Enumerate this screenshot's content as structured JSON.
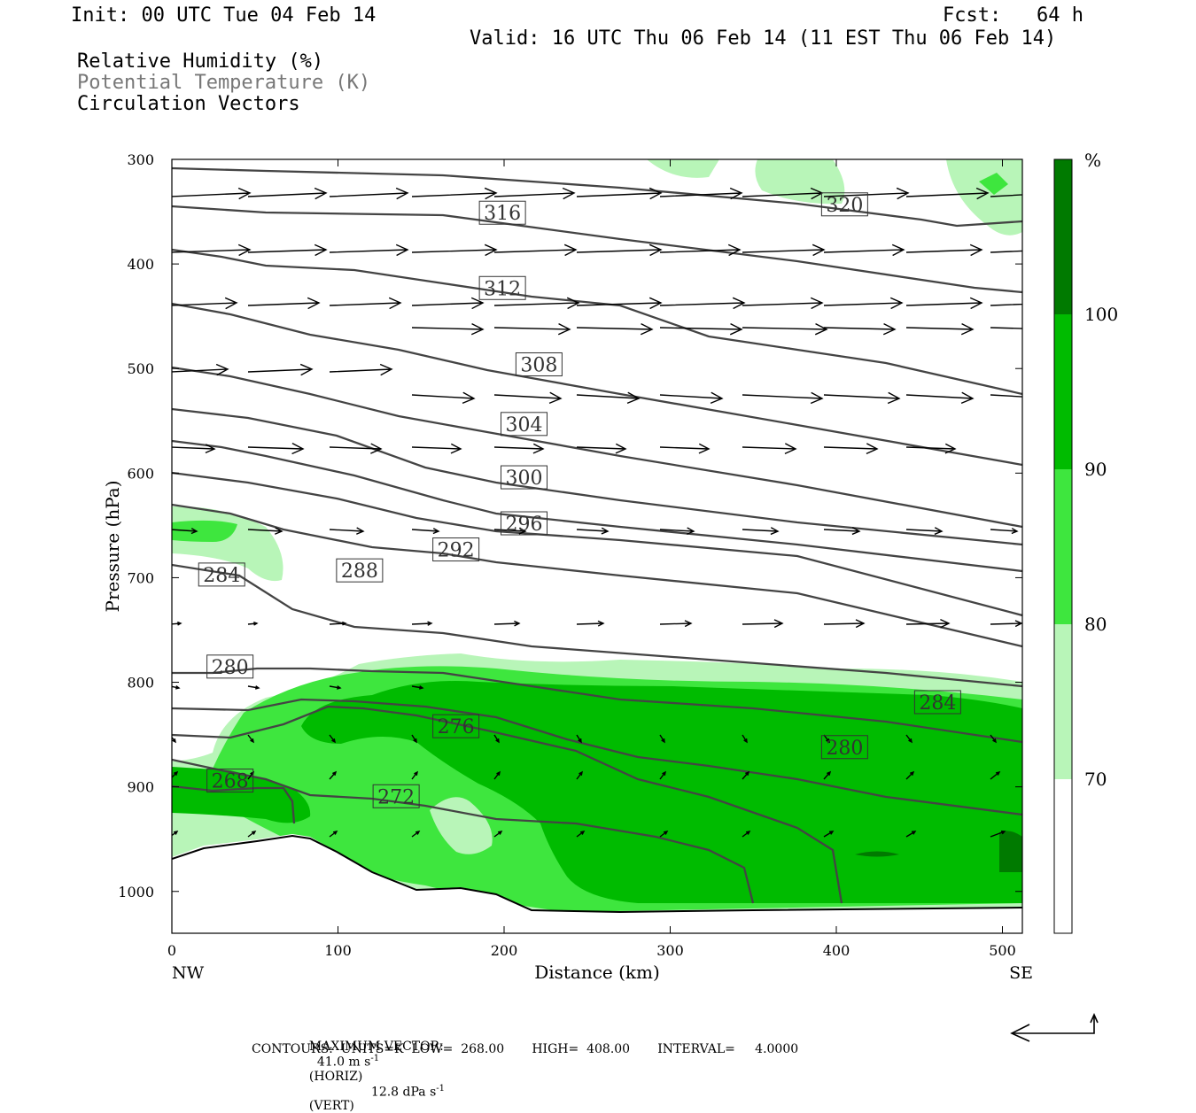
{
  "header": {
    "init": "Init: 00 UTC Tue 04 Feb 14",
    "fcst": "Fcst:   64 h",
    "valid": "Valid: 16 UTC Thu 06 Feb 14 (11 EST Thu 06 Feb 14)",
    "fields": [
      "Relative Humidity (%)",
      "Potential Temperature (K)",
      "Circulation Vectors"
    ]
  },
  "footer": {
    "max_vector_label": "MAXIMUM VECTOR:",
    "horiz": "41.0 m s",
    "horiz_unit": "(HORIZ)",
    "vert": "12.8 dPa s",
    "vert_unit": "(VERT)",
    "contours": "CONTOURS:  UNITS=K  LOW=  268.00       HIGH=  408.00       INTERVAL=     4.0000"
  },
  "colors": {
    "rh_70_80": "#b8f5b8",
    "rh_80_90": "#3ee63e",
    "rh_90_100": "#00bb00",
    "rh_100": "#007a00",
    "contour": "#444444"
  },
  "chart_data": {
    "type": "contour",
    "xlabel": "Distance (km)",
    "ylabel": "Pressure (hPa)",
    "xlim": [
      0,
      512
    ],
    "ylim": [
      1040,
      300
    ],
    "xticks": [
      0,
      100,
      200,
      300,
      400,
      500
    ],
    "yticks": [
      300,
      400,
      500,
      600,
      700,
      800,
      900,
      1000
    ],
    "x_left_label": "NW",
    "x_right_label": "SE",
    "colorbar": {
      "unit": "%",
      "levels": [
        70,
        80,
        90,
        100
      ]
    },
    "contour_labels": [
      {
        "text": "316",
        "x": 199,
        "p": 351
      },
      {
        "text": "320",
        "x": 405,
        "p": 343
      },
      {
        "text": "312",
        "x": 199,
        "p": 423
      },
      {
        "text": "308",
        "x": 221,
        "p": 496
      },
      {
        "text": "304",
        "x": 212,
        "p": 553
      },
      {
        "text": "300",
        "x": 212,
        "p": 604
      },
      {
        "text": "296",
        "x": 212,
        "p": 648
      },
      {
        "text": "292",
        "x": 171,
        "p": 673
      },
      {
        "text": "288",
        "x": 113,
        "p": 693
      },
      {
        "text": "284",
        "x": 30,
        "p": 697
      },
      {
        "text": "280",
        "x": 35,
        "p": 785
      },
      {
        "text": "276",
        "x": 171,
        "p": 842
      },
      {
        "text": "272",
        "x": 135,
        "p": 909
      },
      {
        "text": "268",
        "x": 35,
        "p": 894
      },
      {
        "text": "280",
        "x": 405,
        "p": 862
      },
      {
        "text": "284",
        "x": 461,
        "p": 819
      }
    ]
  }
}
